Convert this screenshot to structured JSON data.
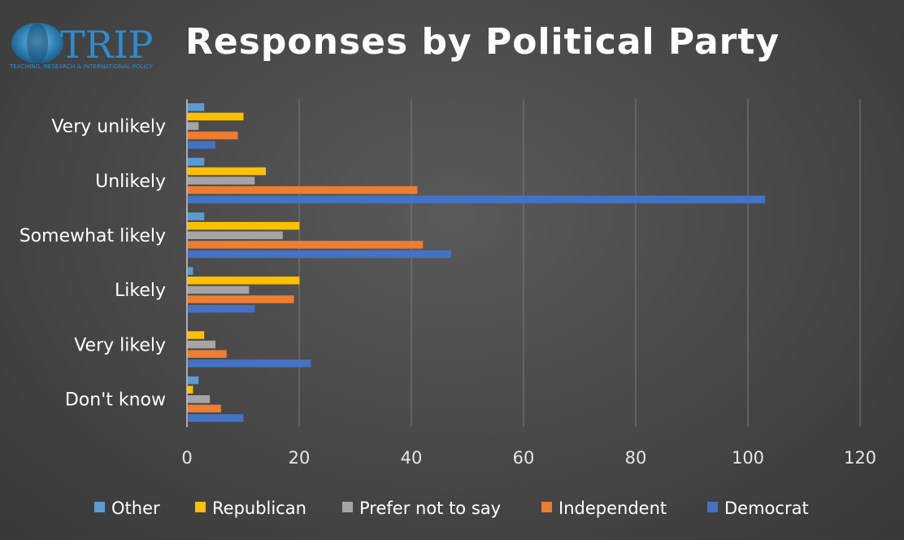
{
  "logo": {
    "text": "TRIP",
    "subtitle": "TEACHING, RESEARCH & INTERNATIONAL POLICY"
  },
  "chart_data": {
    "type": "bar",
    "orientation": "horizontal",
    "title": "Responses by Political Party",
    "categories": [
      "Very unlikely",
      "Unlikely",
      "Somewhat likely",
      "Likely",
      "Very likely",
      "Don't know"
    ],
    "series": [
      {
        "name": "Other",
        "color": "#5b9bd5",
        "values": [
          3,
          3,
          3,
          1,
          0,
          2
        ]
      },
      {
        "name": "Republican",
        "color": "#ffc000",
        "values": [
          10,
          14,
          20,
          20,
          3,
          1
        ]
      },
      {
        "name": "Prefer not to say",
        "color": "#a5a5a5",
        "values": [
          2,
          12,
          17,
          11,
          5,
          4
        ]
      },
      {
        "name": "Independent",
        "color": "#ed7d31",
        "values": [
          9,
          41,
          42,
          19,
          7,
          6
        ]
      },
      {
        "name": "Democrat",
        "color": "#4472c4",
        "values": [
          5,
          103,
          47,
          12,
          22,
          10
        ]
      }
    ],
    "xlim": [
      0,
      120
    ],
    "xticks": [
      0,
      20,
      40,
      60,
      80,
      100,
      120
    ],
    "grid": true,
    "legend_position": "bottom"
  }
}
